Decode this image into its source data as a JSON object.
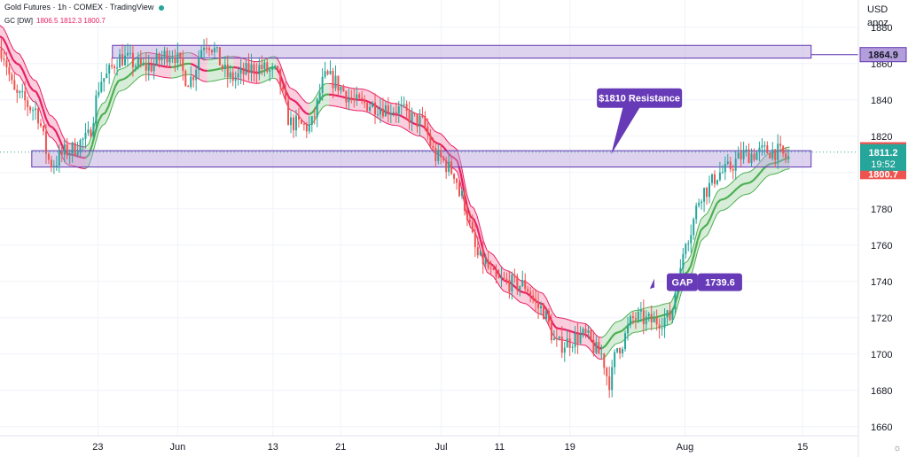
{
  "header": {
    "title": "Gold Futures · 1h · COMEX · TradingView",
    "symbol": "GC [DW]",
    "ohlc": "1806.5  1812.3  1800.7"
  },
  "currency": {
    "line1": "USD",
    "line2": "apoz"
  },
  "colors": {
    "up": "#26a69a",
    "down": "#ef5350",
    "band_fill": "#b39ddb",
    "band_stroke": "#5e35b1",
    "callout": "#673ab7",
    "ribbon_up": "#4caf50",
    "ribbon_down": "#e91e63"
  },
  "chart_data": {
    "type": "candlestick",
    "ylim": [
      1655,
      1895
    ],
    "y_ticks": [
      1660,
      1680,
      1700,
      1720,
      1740,
      1760,
      1780,
      1800,
      1820,
      1840,
      1860,
      1880
    ],
    "x_ticks": [
      {
        "label": "23",
        "t": 0.114
      },
      {
        "label": "Jun",
        "t": 0.207
      },
      {
        "label": "13",
        "t": 0.318
      },
      {
        "label": "21",
        "t": 0.397
      },
      {
        "label": "Jul",
        "t": 0.514
      },
      {
        "label": "11",
        "t": 0.582
      },
      {
        "label": "19",
        "t": 0.664
      },
      {
        "label": "Aug",
        "t": 0.798
      },
      {
        "label": "15",
        "t": 0.935
      }
    ],
    "price_path": [
      [
        0.0,
        1868
      ],
      [
        0.02,
        1842
      ],
      [
        0.04,
        1835
      ],
      [
        0.06,
        1805
      ],
      [
        0.08,
        1812
      ],
      [
        0.1,
        1818
      ],
      [
        0.12,
        1852
      ],
      [
        0.14,
        1863
      ],
      [
        0.17,
        1858
      ],
      [
        0.2,
        1866
      ],
      [
        0.22,
        1851
      ],
      [
        0.24,
        1872
      ],
      [
        0.27,
        1852
      ],
      [
        0.3,
        1858
      ],
      [
        0.32,
        1855
      ],
      [
        0.34,
        1827
      ],
      [
        0.36,
        1825
      ],
      [
        0.38,
        1852
      ],
      [
        0.42,
        1838
      ],
      [
        0.46,
        1835
      ],
      [
        0.49,
        1828
      ],
      [
        0.51,
        1808
      ],
      [
        0.53,
        1800
      ],
      [
        0.535,
        1788
      ],
      [
        0.56,
        1752
      ],
      [
        0.58,
        1740
      ],
      [
        0.61,
        1738
      ],
      [
        0.63,
        1725
      ],
      [
        0.65,
        1705
      ],
      [
        0.68,
        1710
      ],
      [
        0.7,
        1700
      ],
      [
        0.71,
        1685
      ],
      [
        0.72,
        1704
      ],
      [
        0.74,
        1720
      ],
      [
        0.76,
        1718
      ],
      [
        0.78,
        1720
      ],
      [
        0.79,
        1740
      ],
      [
        0.8,
        1765
      ],
      [
        0.82,
        1790
      ],
      [
        0.84,
        1800
      ],
      [
        0.87,
        1810
      ],
      [
        0.9,
        1812
      ],
      [
        0.92,
        1808
      ]
    ],
    "ribbon_path": [
      [
        0.0,
        1875
      ],
      [
        0.02,
        1860
      ],
      [
        0.04,
        1845
      ],
      [
        0.06,
        1825
      ],
      [
        0.08,
        1810
      ],
      [
        0.1,
        1808
      ],
      [
        0.12,
        1832
      ],
      [
        0.14,
        1851
      ],
      [
        0.17,
        1860
      ],
      [
        0.2,
        1858
      ],
      [
        0.22,
        1860
      ],
      [
        0.24,
        1856
      ],
      [
        0.27,
        1858
      ],
      [
        0.3,
        1855
      ],
      [
        0.32,
        1858
      ],
      [
        0.34,
        1840
      ],
      [
        0.36,
        1832
      ],
      [
        0.38,
        1843
      ],
      [
        0.42,
        1840
      ],
      [
        0.46,
        1832
      ],
      [
        0.49,
        1826
      ],
      [
        0.51,
        1816
      ],
      [
        0.53,
        1808
      ],
      [
        0.55,
        1775
      ],
      [
        0.57,
        1750
      ],
      [
        0.59,
        1740
      ],
      [
        0.61,
        1734
      ],
      [
        0.63,
        1728
      ],
      [
        0.65,
        1714
      ],
      [
        0.68,
        1711
      ],
      [
        0.7,
        1703
      ],
      [
        0.72,
        1712
      ],
      [
        0.74,
        1718
      ],
      [
        0.76,
        1720
      ],
      [
        0.78,
        1722
      ],
      [
        0.8,
        1745
      ],
      [
        0.82,
        1770
      ],
      [
        0.84,
        1785
      ],
      [
        0.87,
        1794
      ],
      [
        0.9,
        1805
      ],
      [
        0.92,
        1808
      ]
    ],
    "zones": [
      {
        "x0": 0.131,
        "x1": 0.945,
        "y_low": 1863,
        "y_high": 1870,
        "label": "1864.9",
        "value": 1864.9
      },
      {
        "x0": 0.037,
        "x1": 0.945,
        "y_low": 1803,
        "y_high": 1812,
        "label": ""
      }
    ],
    "annotations": [
      {
        "text": "$1810 Resistance",
        "x": 0.745,
        "y": 1841,
        "pointer_x": 0.712,
        "pointer_y": 1810
      },
      {
        "text": "GAP",
        "value_label": "1739.6",
        "x": 0.783,
        "y": 1739.6,
        "pointer_x": 0.757,
        "pointer_y": 1736
      }
    ],
    "last_price": {
      "value": "1811.2",
      "time": "19:52",
      "low": "1800.7",
      "high": "1812.3"
    }
  }
}
